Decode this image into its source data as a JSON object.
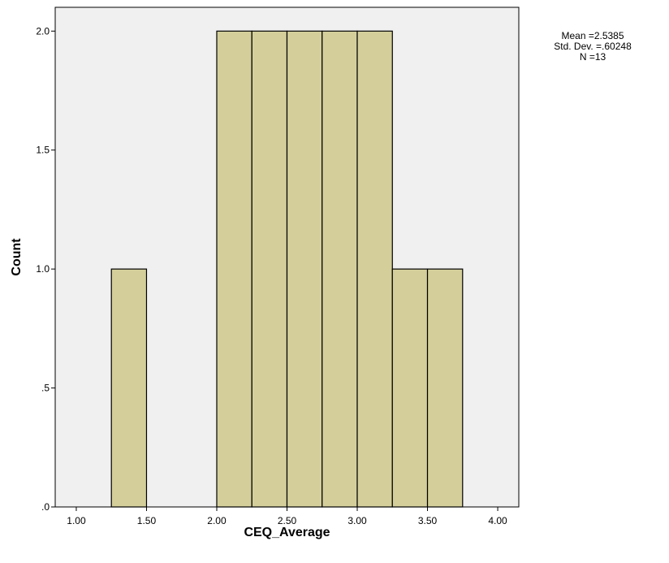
{
  "chart_data": {
    "type": "bar",
    "subtype": "histogram",
    "xlabel": "CEQ_Average",
    "ylabel": "Count",
    "xlim": [
      0.85,
      4.15
    ],
    "ylim": [
      0,
      2.1
    ],
    "x_ticks": [
      {
        "value": 1.0,
        "label": "1.00"
      },
      {
        "value": 1.5,
        "label": "1.50"
      },
      {
        "value": 2.0,
        "label": "2.00"
      },
      {
        "value": 2.5,
        "label": "2.50"
      },
      {
        "value": 3.0,
        "label": "3.00"
      },
      {
        "value": 3.5,
        "label": "3.50"
      },
      {
        "value": 4.0,
        "label": "4.00"
      }
    ],
    "y_ticks": [
      {
        "value": 0,
        "label": ".0"
      },
      {
        "value": 0.5,
        "label": ".5"
      },
      {
        "value": 1.0,
        "label": "1.0"
      },
      {
        "value": 1.5,
        "label": "1.5"
      },
      {
        "value": 2.0,
        "label": "2.0"
      }
    ],
    "bins": [
      {
        "x0": 1.25,
        "x1": 1.5,
        "count": 1
      },
      {
        "x0": 2.0,
        "x1": 2.25,
        "count": 2
      },
      {
        "x0": 2.25,
        "x1": 2.5,
        "count": 2
      },
      {
        "x0": 2.5,
        "x1": 2.75,
        "count": 2
      },
      {
        "x0": 2.75,
        "x1": 3.0,
        "count": 2
      },
      {
        "x0": 3.0,
        "x1": 3.25,
        "count": 2
      },
      {
        "x0": 3.25,
        "x1": 3.5,
        "count": 1
      },
      {
        "x0": 3.5,
        "x1": 3.75,
        "count": 1
      }
    ],
    "grid": false,
    "stats": {
      "mean": "Mean =2.5385",
      "std_dev": "Std. Dev. =.60248",
      "n": "N =13"
    },
    "colors": {
      "plot_background": "#f0f0f0",
      "bar_fill": "#d4cf9a",
      "bar_stroke": "#000000"
    }
  }
}
